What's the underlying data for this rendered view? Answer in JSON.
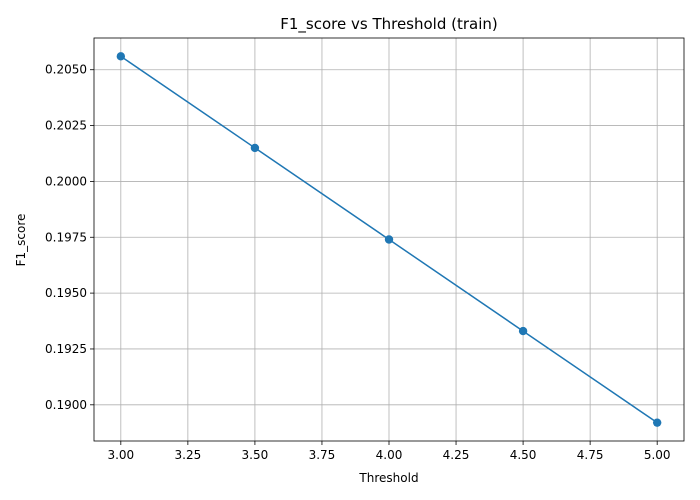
{
  "chart_data": {
    "type": "line",
    "title": "F1_score vs Threshold (train)",
    "xlabel": "Threshold",
    "ylabel": "F1_score",
    "x": [
      3.0,
      3.5,
      4.0,
      4.5,
      5.0
    ],
    "series": [
      {
        "values": [
          0.2056,
          0.2015,
          0.1974,
          0.1933,
          0.1892
        ],
        "color": "#1f77b4",
        "marker": "circle"
      }
    ],
    "xlim": [
      2.9,
      5.1
    ],
    "ylim": [
      0.18838,
      0.20642
    ],
    "x_ticks": [
      "3.00",
      "3.25",
      "3.50",
      "3.75",
      "4.00",
      "4.25",
      "4.50",
      "4.75",
      "5.00"
    ],
    "y_ticks": [
      "0.1900",
      "0.1925",
      "0.1950",
      "0.1975",
      "0.2000",
      "0.2025",
      "0.2050"
    ],
    "grid": true,
    "legend": "none"
  }
}
